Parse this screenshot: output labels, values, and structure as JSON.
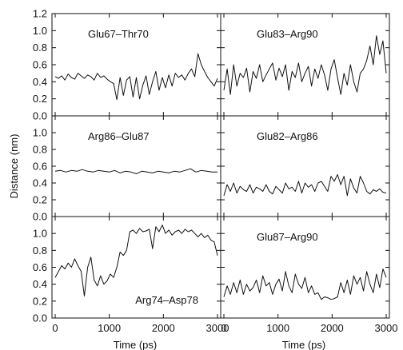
{
  "chart_data": {
    "type": "line",
    "layout_grid": "3x2",
    "ylabel": "Distance (nm)",
    "xlabel": "Time (ps)",
    "xlim": [
      0,
      3000
    ],
    "ylim": [
      0.0,
      1.2
    ],
    "yticks": [
      "0.0",
      "0.2",
      "0.4",
      "0.6",
      "0.8",
      "1.0",
      "1.2"
    ],
    "xticks": [
      "0",
      "1000",
      "2000",
      "3000"
    ],
    "panels": [
      {
        "label": "Glu67–Thr70",
        "label_pos": "top-left",
        "series": [
          {
            "x": [
              0,
              60,
              120,
              180,
              240,
              300,
              360,
              420,
              480,
              540,
              600,
              660,
              720,
              780,
              840,
              900,
              960,
              1020,
              1080,
              1140,
              1200,
              1260,
              1320,
              1380,
              1440,
              1500,
              1560,
              1620,
              1680,
              1740,
              1800,
              1860,
              1920,
              1980,
              2040,
              2100,
              2160,
              2220,
              2280,
              2340,
              2400,
              2460,
              2520,
              2580,
              2640,
              2700,
              2760,
              2820,
              2880,
              2940,
              3000
            ],
            "y": [
              0.46,
              0.44,
              0.47,
              0.42,
              0.49,
              0.45,
              0.43,
              0.5,
              0.47,
              0.44,
              0.48,
              0.46,
              0.42,
              0.5,
              0.45,
              0.47,
              0.43,
              0.4,
              0.38,
              0.19,
              0.45,
              0.24,
              0.42,
              0.46,
              0.22,
              0.45,
              0.2,
              0.36,
              0.47,
              0.25,
              0.4,
              0.52,
              0.3,
              0.45,
              0.33,
              0.48,
              0.35,
              0.5,
              0.45,
              0.48,
              0.42,
              0.5,
              0.55,
              0.46,
              0.73,
              0.6,
              0.52,
              0.45,
              0.4,
              0.35,
              0.44
            ]
          }
        ]
      },
      {
        "label": "Glu83–Arg90",
        "label_pos": "top-left",
        "series": [
          {
            "x": [
              0,
              60,
              120,
              180,
              240,
              300,
              360,
              420,
              480,
              540,
              600,
              660,
              720,
              780,
              840,
              900,
              960,
              1020,
              1080,
              1140,
              1200,
              1260,
              1320,
              1380,
              1440,
              1500,
              1560,
              1620,
              1680,
              1740,
              1800,
              1860,
              1920,
              1980,
              2040,
              2100,
              2160,
              2220,
              2280,
              2340,
              2400,
              2460,
              2520,
              2580,
              2640,
              2700,
              2760,
              2820,
              2880,
              2940,
              3000
            ],
            "y": [
              0.3,
              0.55,
              0.25,
              0.6,
              0.35,
              0.5,
              0.45,
              0.56,
              0.28,
              0.52,
              0.44,
              0.6,
              0.4,
              0.48,
              0.55,
              0.62,
              0.42,
              0.56,
              0.46,
              0.6,
              0.3,
              0.52,
              0.45,
              0.62,
              0.4,
              0.5,
              0.58,
              0.35,
              0.55,
              0.44,
              0.6,
              0.48,
              0.3,
              0.55,
              0.66,
              0.45,
              0.25,
              0.5,
              0.36,
              0.6,
              0.4,
              0.28,
              0.5,
              0.55,
              0.65,
              0.82,
              0.6,
              0.94,
              0.72,
              0.88,
              0.5
            ]
          }
        ]
      },
      {
        "label": "Arg86–Glu87",
        "label_pos": "top-left",
        "series": [
          {
            "x": [
              0,
              100,
              200,
              300,
              400,
              500,
              600,
              700,
              800,
              900,
              1000,
              1100,
              1200,
              1300,
              1400,
              1500,
              1600,
              1700,
              1800,
              1900,
              2000,
              2100,
              2200,
              2300,
              2400,
              2500,
              2600,
              2700,
              2800,
              2900,
              3000
            ],
            "y": [
              0.54,
              0.55,
              0.53,
              0.55,
              0.54,
              0.56,
              0.54,
              0.53,
              0.55,
              0.54,
              0.53,
              0.55,
              0.52,
              0.54,
              0.53,
              0.51,
              0.54,
              0.53,
              0.52,
              0.54,
              0.53,
              0.52,
              0.54,
              0.53,
              0.55,
              0.57,
              0.53,
              0.55,
              0.54,
              0.53,
              0.53
            ]
          }
        ]
      },
      {
        "label": "Glu82–Arg86",
        "label_pos": "top-left",
        "series": [
          {
            "x": [
              0,
              60,
              120,
              180,
              240,
              300,
              360,
              420,
              480,
              540,
              600,
              660,
              720,
              780,
              840,
              900,
              960,
              1020,
              1080,
              1140,
              1200,
              1260,
              1320,
              1380,
              1440,
              1500,
              1560,
              1620,
              1680,
              1740,
              1800,
              1860,
              1920,
              1980,
              2040,
              2100,
              2160,
              2220,
              2280,
              2340,
              2400,
              2460,
              2520,
              2580,
              2640,
              2700,
              2760,
              2820,
              2880,
              2940,
              3000
            ],
            "y": [
              0.25,
              0.38,
              0.3,
              0.4,
              0.28,
              0.36,
              0.32,
              0.3,
              0.38,
              0.28,
              0.35,
              0.33,
              0.3,
              0.38,
              0.3,
              0.27,
              0.36,
              0.32,
              0.28,
              0.4,
              0.33,
              0.35,
              0.3,
              0.42,
              0.28,
              0.4,
              0.35,
              0.38,
              0.3,
              0.4,
              0.42,
              0.36,
              0.3,
              0.48,
              0.42,
              0.5,
              0.38,
              0.48,
              0.25,
              0.45,
              0.34,
              0.28,
              0.48,
              0.4,
              0.3,
              0.27,
              0.32,
              0.3,
              0.33,
              0.29,
              0.28
            ]
          }
        ]
      },
      {
        "label": "Arg74–Asp78",
        "label_pos": "bottom-right",
        "series": [
          {
            "x": [
              0,
              60,
              120,
              180,
              240,
              300,
              360,
              420,
              480,
              540,
              600,
              660,
              720,
              780,
              840,
              900,
              960,
              1020,
              1080,
              1140,
              1200,
              1260,
              1320,
              1380,
              1440,
              1500,
              1560,
              1620,
              1680,
              1740,
              1800,
              1860,
              1920,
              1980,
              2040,
              2100,
              2160,
              2220,
              2280,
              2340,
              2400,
              2460,
              2520,
              2580,
              2640,
              2700,
              2760,
              2820,
              2880,
              2940,
              3000
            ],
            "y": [
              0.48,
              0.55,
              0.62,
              0.58,
              0.65,
              0.6,
              0.7,
              0.62,
              0.55,
              0.26,
              0.6,
              0.72,
              0.45,
              0.38,
              0.5,
              0.4,
              0.44,
              0.52,
              0.48,
              0.6,
              0.78,
              0.74,
              0.8,
              1.02,
              1.04,
              1.0,
              1.06,
              1.02,
              1.03,
              1.05,
              0.82,
              1.08,
              1.02,
              1.1,
              1.0,
              1.04,
              0.98,
              1.02,
              1.04,
              1.0,
              1.05,
              1.02,
              1.04,
              1.0,
              0.96,
              1.0,
              0.95,
              0.98,
              0.92,
              0.9,
              0.74
            ]
          }
        ]
      },
      {
        "label": "Glu87–Arg90",
        "label_pos": "top-left",
        "series": [
          {
            "x": [
              0,
              60,
              120,
              180,
              240,
              300,
              360,
              420,
              480,
              540,
              600,
              660,
              720,
              780,
              840,
              900,
              960,
              1020,
              1080,
              1140,
              1200,
              1260,
              1320,
              1380,
              1440,
              1500,
              1560,
              1620,
              1680,
              1740,
              1800,
              1860,
              1920,
              1980,
              2040,
              2100,
              2160,
              2220,
              2280,
              2340,
              2400,
              2460,
              2520,
              2580,
              2640,
              2700,
              2760,
              2820,
              2880,
              2940,
              3000
            ],
            "y": [
              0.25,
              0.38,
              0.28,
              0.42,
              0.3,
              0.45,
              0.28,
              0.4,
              0.32,
              0.36,
              0.45,
              0.3,
              0.5,
              0.38,
              0.42,
              0.28,
              0.4,
              0.46,
              0.32,
              0.55,
              0.38,
              0.3,
              0.52,
              0.4,
              0.35,
              0.48,
              0.3,
              0.38,
              0.28,
              0.3,
              0.22,
              0.25,
              0.24,
              0.22,
              0.23,
              0.25,
              0.42,
              0.3,
              0.45,
              0.28,
              0.5,
              0.4,
              0.48,
              0.32,
              0.55,
              0.4,
              0.3,
              0.52,
              0.36,
              0.58,
              0.48
            ]
          }
        ]
      }
    ]
  }
}
